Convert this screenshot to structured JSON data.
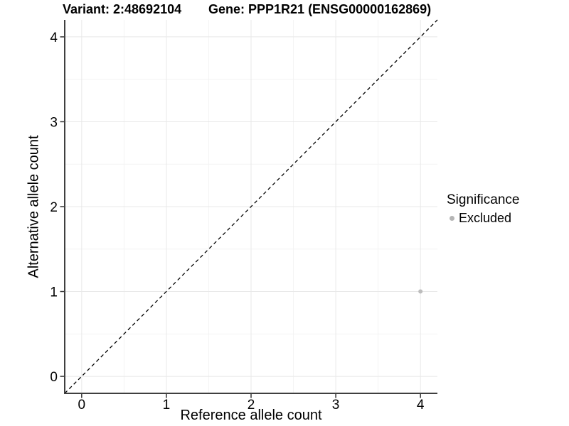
{
  "chart_data": {
    "type": "scatter",
    "title_variant": "Variant: 2:48692104",
    "title_gene": "Gene: PPP1R21 (ENSG00000162869)",
    "xlabel": "Reference allele count",
    "ylabel": "Alternative allele count",
    "xlim": [
      -0.2,
      4.2
    ],
    "ylim": [
      -0.2,
      4.2
    ],
    "xticks": [
      0,
      1,
      2,
      3,
      4
    ],
    "yticks": [
      0,
      1,
      2,
      3,
      4
    ],
    "minor_step": 0.5,
    "grid": {
      "major_color": "#e8e8e8",
      "minor_color": "#f3f3f3"
    },
    "reference_line": {
      "type": "identity",
      "from": [
        -0.2,
        -0.2
      ],
      "to": [
        4.2,
        4.2
      ],
      "style": "dashed",
      "color": "#000000"
    },
    "series": [
      {
        "name": "Excluded",
        "color": "#bdbdbd",
        "points": [
          {
            "x": 4,
            "y": 1
          }
        ]
      }
    ],
    "legend": {
      "title": "Significance",
      "position": "right",
      "items": [
        {
          "label": "Excluded",
          "color": "#b5b5b5"
        }
      ]
    }
  },
  "colors": {
    "background": "#ffffff",
    "axis_line": "#3f3f3f",
    "tick_mark": "#333333",
    "text": "#000000"
  }
}
